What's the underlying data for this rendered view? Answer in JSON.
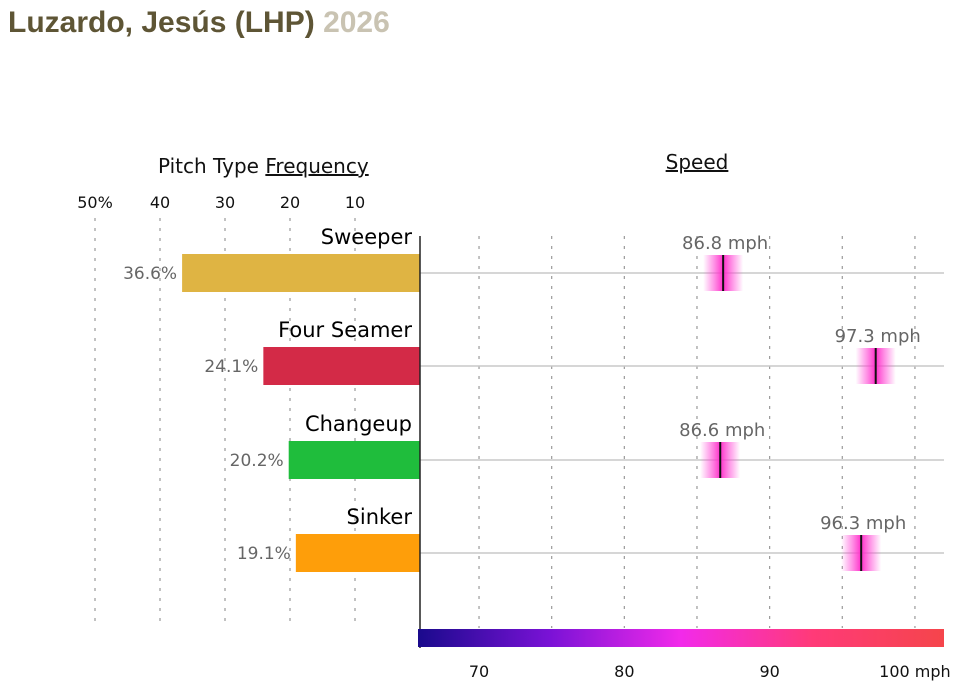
{
  "header": {
    "pitcher": "Luzardo, Jesús (LHP)",
    "year": "2026"
  },
  "chart_data": {
    "type": "bar",
    "freq_title_prefix": "Pitch Type",
    "freq_title_link": "Frequency",
    "speed_title": "Speed",
    "freq_ticks": [
      "50%",
      "40",
      "30",
      "20",
      "10"
    ],
    "freq_tick_values": [
      50,
      40,
      30,
      20,
      10
    ],
    "speed_ticks": [
      "70",
      "80",
      "90",
      "100 mph"
    ],
    "speed_tick_values": [
      70,
      80,
      90,
      100
    ],
    "speed_range": [
      65.8,
      102.0
    ],
    "categories": [
      "Sweeper",
      "Four Seamer",
      "Changeup",
      "Sinker"
    ],
    "series": [
      {
        "metric": "frequency_pct",
        "values": [
          36.6,
          24.1,
          20.2,
          19.1
        ],
        "labels": [
          "36.6%",
          "24.1%",
          "20.2%",
          "19.1%"
        ]
      },
      {
        "metric": "speed_mph",
        "values": [
          86.8,
          97.3,
          86.6,
          96.3
        ],
        "labels": [
          "86.8 mph",
          "97.3 mph",
          "86.6 mph",
          "96.3 mph"
        ]
      }
    ],
    "colors": [
      "#dfb443",
      "#d32a47",
      "#1fbd3c",
      "#fe9e0a"
    ],
    "speed_colors": [
      "#1a0a8c",
      "#7a12d6",
      "#f22aea",
      "#ff3a78",
      "#f5454b"
    ],
    "grid": true
  }
}
